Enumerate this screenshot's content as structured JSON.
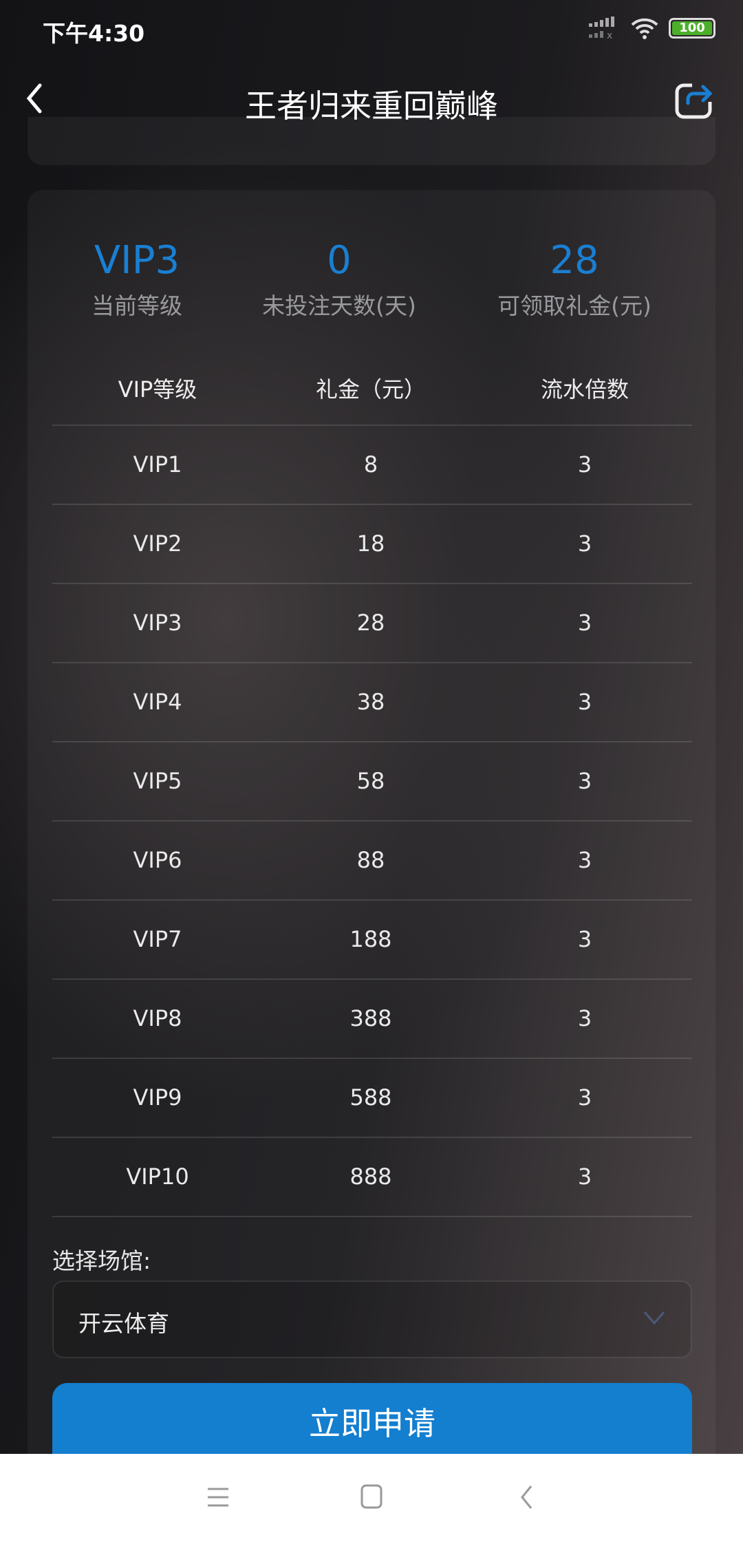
{
  "status_bar": {
    "time": "下午4:30",
    "battery": "100"
  },
  "header": {
    "title": "王者归来重回巅峰"
  },
  "stats": [
    {
      "value": "VIP3",
      "label": "当前等级"
    },
    {
      "value": "0",
      "label": "未投注天数(天)"
    },
    {
      "value": "28",
      "label": "可领取礼金(元)"
    }
  ],
  "table": {
    "headers": [
      "VIP等级",
      "礼金（元）",
      "流水倍数"
    ],
    "rows": [
      [
        "VIP1",
        "8",
        "3"
      ],
      [
        "VIP2",
        "18",
        "3"
      ],
      [
        "VIP3",
        "28",
        "3"
      ],
      [
        "VIP4",
        "38",
        "3"
      ],
      [
        "VIP5",
        "58",
        "3"
      ],
      [
        "VIP6",
        "88",
        "3"
      ],
      [
        "VIP7",
        "188",
        "3"
      ],
      [
        "VIP8",
        "388",
        "3"
      ],
      [
        "VIP9",
        "588",
        "3"
      ],
      [
        "VIP10",
        "888",
        "3"
      ]
    ]
  },
  "venue": {
    "label": "选择场馆:",
    "selected": "开云体育"
  },
  "submit_label": "立即申请",
  "colors": {
    "accent": "#1a7fd2",
    "button": "#147ecf",
    "battery": "#4caf2a"
  }
}
